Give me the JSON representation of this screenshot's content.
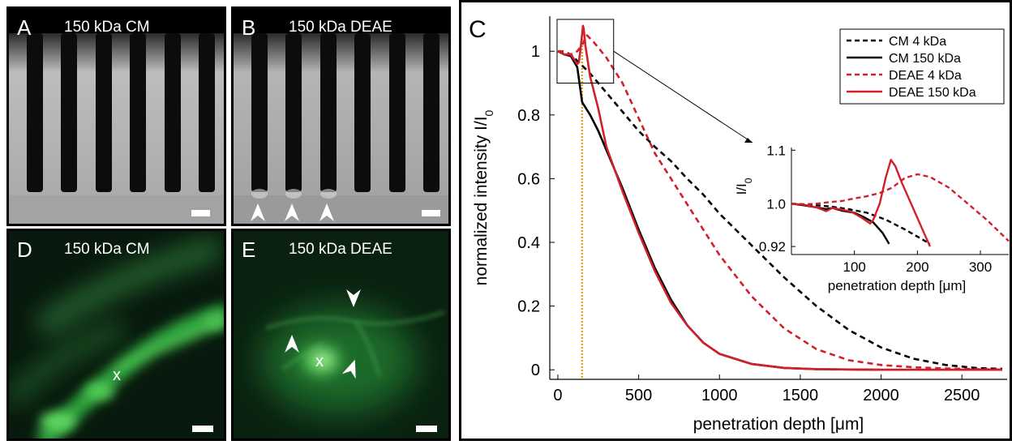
{
  "panels": {
    "A": {
      "letter": "A",
      "title": "150 kDa CM"
    },
    "B": {
      "letter": "B",
      "title": "150 kDa DEAE"
    },
    "D": {
      "letter": "D",
      "title": "150 kDa CM",
      "marker": "x"
    },
    "E": {
      "letter": "E",
      "title": "150 kDa DEAE",
      "marker": "x"
    }
  },
  "colors": {
    "cm": "#000000",
    "deae": "#d0202a",
    "vline": "#e0a020",
    "fluor_green": "#2e9a3a"
  },
  "chart_data": {
    "type": "line",
    "panel_letter": "C",
    "xlabel": "penetration depth [μm]",
    "ylabel": "normalized intensity I/I",
    "ylabel_sub": "0",
    "xlim": [
      -50,
      2780
    ],
    "ylim": [
      -0.03,
      1.11
    ],
    "xticks": [
      0,
      500,
      1000,
      1500,
      2000,
      2500
    ],
    "yticks": [
      0,
      0.2,
      0.4,
      0.6,
      0.8,
      1
    ],
    "vline_x": 150,
    "legend_position": "top-right",
    "series": [
      {
        "name": "CM 4 kDa",
        "style": "dashed",
        "color": "#000000",
        "x": [
          0,
          40,
          80,
          120,
          150,
          200,
          300,
          400,
          500,
          600,
          700,
          800,
          900,
          1000,
          1200,
          1400,
          1600,
          1800,
          2000,
          2200,
          2400,
          2600,
          2750
        ],
        "y": [
          1.0,
          0.995,
          0.99,
          0.97,
          0.955,
          0.93,
          0.87,
          0.81,
          0.75,
          0.7,
          0.655,
          0.6,
          0.55,
          0.49,
          0.39,
          0.29,
          0.2,
          0.125,
          0.07,
          0.035,
          0.015,
          0.005,
          0.003
        ]
      },
      {
        "name": "CM 150 kDa",
        "style": "solid",
        "color": "#000000",
        "x": [
          0,
          40,
          80,
          120,
          150,
          200,
          250,
          300,
          400,
          500,
          600,
          700,
          800,
          900,
          1000,
          1200,
          1400,
          1600,
          1800,
          2000,
          2750
        ],
        "y": [
          1.0,
          0.99,
          0.985,
          0.95,
          0.84,
          0.8,
          0.75,
          0.69,
          0.57,
          0.44,
          0.32,
          0.22,
          0.14,
          0.085,
          0.05,
          0.018,
          0.006,
          0.002,
          0.001,
          0.0,
          0.0
        ]
      },
      {
        "name": "DEAE 4 kDa",
        "style": "dashed",
        "color": "#d0202a",
        "x": [
          0,
          40,
          80,
          120,
          150,
          180,
          220,
          300,
          400,
          500,
          600,
          700,
          800,
          900,
          1000,
          1200,
          1400,
          1600,
          1800,
          2000,
          2200,
          2400,
          2600,
          2750
        ],
        "y": [
          1.0,
          1.0,
          0.99,
          1.0,
          1.02,
          1.05,
          1.03,
          0.98,
          0.9,
          0.79,
          0.68,
          0.6,
          0.52,
          0.44,
          0.36,
          0.23,
          0.13,
          0.065,
          0.03,
          0.015,
          0.008,
          0.004,
          0.002,
          0.001
        ]
      },
      {
        "name": "DEAE 150 kDa",
        "style": "solid",
        "color": "#d0202a",
        "x": [
          0,
          40,
          80,
          120,
          130,
          145,
          155,
          160,
          170,
          200,
          250,
          300,
          400,
          500,
          600,
          700,
          800,
          900,
          1000,
          1200,
          1400,
          1600,
          1800,
          2000,
          2750
        ],
        "y": [
          1.0,
          0.99,
          0.99,
          0.96,
          0.965,
          1.03,
          1.08,
          1.07,
          1.02,
          0.92,
          0.82,
          0.7,
          0.56,
          0.43,
          0.31,
          0.21,
          0.14,
          0.085,
          0.05,
          0.018,
          0.006,
          0.002,
          0.001,
          0.0,
          0.0
        ]
      }
    ],
    "inset": {
      "xlabel": "penetration depth [μm]",
      "ylabel": "I/I",
      "ylabel_sub": "0",
      "xlim": [
        0,
        345
      ],
      "ylim": [
        0.905,
        1.105
      ],
      "xticks": [
        100,
        200,
        300
      ],
      "yticks": [
        0.92,
        1.0,
        1.1
      ],
      "ytick_labels": [
        "0.92",
        "1.0",
        "1.1"
      ],
      "series": [
        {
          "name": "CM 4 kDa",
          "style": "dashed",
          "color": "#000000",
          "x": [
            0,
            30,
            60,
            90,
            120,
            150,
            180,
            220
          ],
          "y": [
            1.0,
            0.998,
            0.995,
            0.99,
            0.983,
            0.97,
            0.952,
            0.925
          ]
        },
        {
          "name": "CM 150 kDa",
          "style": "solid",
          "color": "#000000",
          "x": [
            0,
            20,
            40,
            55,
            65,
            80,
            100,
            115,
            130,
            145,
            155
          ],
          "y": [
            1.0,
            0.997,
            0.993,
            0.99,
            0.992,
            0.987,
            0.983,
            0.975,
            0.965,
            0.945,
            0.925
          ]
        },
        {
          "name": "DEAE 4 kDa",
          "style": "dashed",
          "color": "#d0202a",
          "x": [
            0,
            20,
            40,
            60,
            80,
            100,
            120,
            140,
            160,
            180,
            200,
            220,
            250,
            280,
            310,
            345
          ],
          "y": [
            1.0,
            0.999,
            1.0,
            1.003,
            1.005,
            1.01,
            1.014,
            1.02,
            1.03,
            1.048,
            1.055,
            1.05,
            1.03,
            1.0,
            0.97,
            0.93
          ]
        },
        {
          "name": "DEAE 150 kDa",
          "style": "solid",
          "color": "#d0202a",
          "x": [
            0,
            20,
            40,
            55,
            65,
            80,
            95,
            110,
            125,
            130,
            140,
            150,
            158,
            165,
            175,
            190,
            205,
            220
          ],
          "y": [
            1.0,
            0.998,
            0.993,
            0.986,
            0.992,
            0.989,
            0.985,
            0.975,
            0.963,
            0.97,
            1.0,
            1.05,
            1.082,
            1.07,
            1.04,
            1.0,
            0.96,
            0.92
          ]
        }
      ]
    }
  }
}
